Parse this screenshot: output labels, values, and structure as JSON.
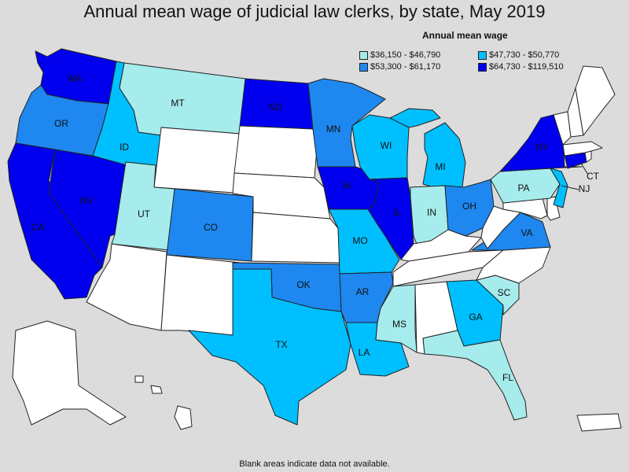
{
  "title": "Annual mean wage of judicial law clerks, by state, May 2019",
  "legend": {
    "title": "Annual mean wage",
    "items": [
      {
        "label": "$36,150 - $46,790",
        "color": "#a6ecec"
      },
      {
        "label": "$47,730 - $50,770",
        "color": "#00bfff"
      },
      {
        "label": "$53,300 - $61,170",
        "color": "#1e88f0"
      },
      {
        "label": "$64,730 - $119,510",
        "color": "#0000ee"
      }
    ]
  },
  "footnote": "Blank areas indicate data not available.",
  "colors": {
    "no_data": "#ffffff"
  },
  "states": [
    {
      "abbr": "WA",
      "bin": 3
    },
    {
      "abbr": "OR",
      "bin": 2
    },
    {
      "abbr": "CA",
      "bin": 3
    },
    {
      "abbr": "NV",
      "bin": 3
    },
    {
      "abbr": "ID",
      "bin": 1
    },
    {
      "abbr": "MT",
      "bin": 0
    },
    {
      "abbr": "UT",
      "bin": 0
    },
    {
      "abbr": "CO",
      "bin": 2
    },
    {
      "abbr": "ND",
      "bin": 3
    },
    {
      "abbr": "MN",
      "bin": 2
    },
    {
      "abbr": "IA",
      "bin": 3
    },
    {
      "abbr": "MO",
      "bin": 1
    },
    {
      "abbr": "OK",
      "bin": 2
    },
    {
      "abbr": "TX",
      "bin": 1
    },
    {
      "abbr": "AR",
      "bin": 2
    },
    {
      "abbr": "LA",
      "bin": 1
    },
    {
      "abbr": "MS",
      "bin": 0
    },
    {
      "abbr": "WI",
      "bin": 1
    },
    {
      "abbr": "IL",
      "bin": 3
    },
    {
      "abbr": "IN",
      "bin": 0
    },
    {
      "abbr": "MI",
      "bin": 1
    },
    {
      "abbr": "OH",
      "bin": 2
    },
    {
      "abbr": "GA",
      "bin": 1
    },
    {
      "abbr": "SC",
      "bin": 0
    },
    {
      "abbr": "FL",
      "bin": 0
    },
    {
      "abbr": "VA",
      "bin": 2
    },
    {
      "abbr": "PA",
      "bin": 0
    },
    {
      "abbr": "NY",
      "bin": 3
    },
    {
      "abbr": "NJ",
      "bin": 1
    },
    {
      "abbr": "CT",
      "bin": 3
    }
  ],
  "no_data_states": [
    "AZ",
    "NM",
    "WY",
    "SD",
    "NE",
    "KS",
    "KY",
    "TN",
    "AL",
    "NC",
    "WV",
    "MD",
    "DE",
    "ME",
    "NH",
    "VT",
    "MA",
    "RI",
    "AK",
    "HI",
    "PR"
  ]
}
